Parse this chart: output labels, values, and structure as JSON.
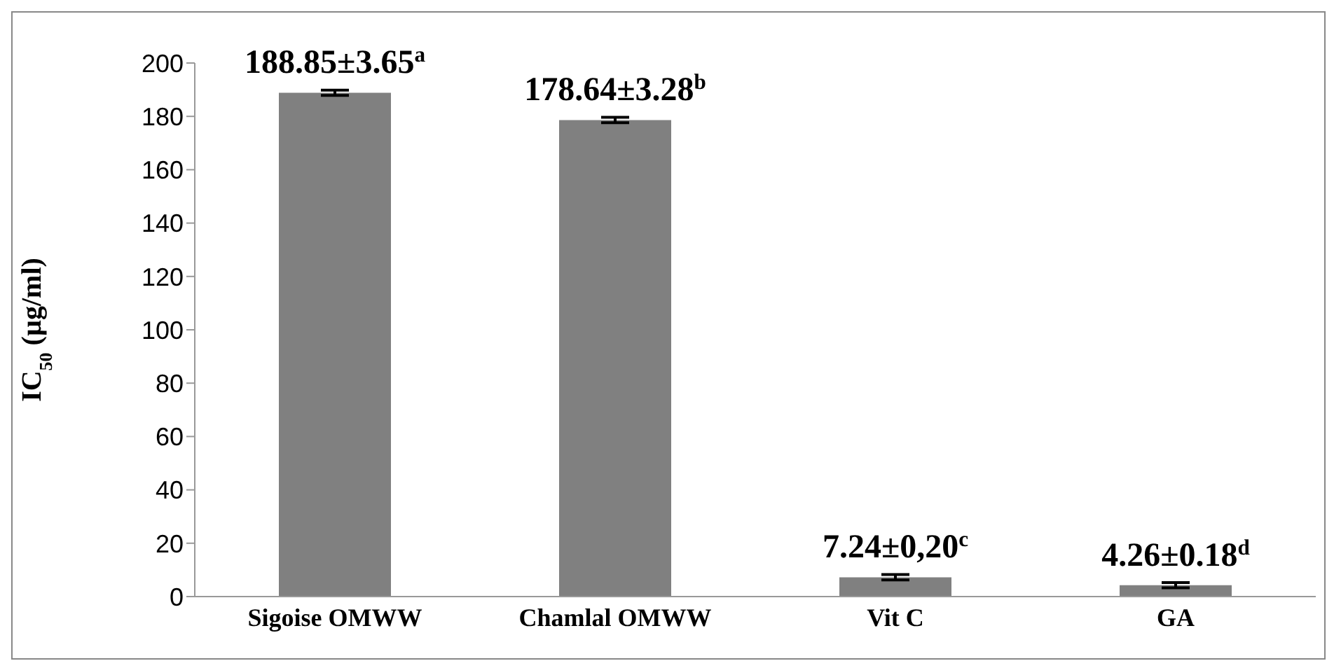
{
  "chart_data": {
    "type": "bar",
    "ylabel": "IC$_{50}$ (µg/ml)",
    "categories": [
      "Sigoise OMWW",
      "Chamlal OMWW",
      "Vit C",
      "GA"
    ],
    "values": [
      188.85,
      178.64,
      7.24,
      4.26
    ],
    "errors": [
      1,
      1,
      1,
      1
    ],
    "value_labels": [
      "188.85±3.65$^{a}$",
      "178.64±3.28$^{b}$",
      "7.24±0,20$^{c}$",
      "4.26±0.18$^{d}$"
    ],
    "color": "#808080",
    "ylim": [
      0,
      200
    ],
    "yticks": [
      0,
      20,
      40,
      60,
      80,
      100,
      120,
      140,
      160,
      180,
      200
    ],
    "grid": false,
    "legend": false
  }
}
